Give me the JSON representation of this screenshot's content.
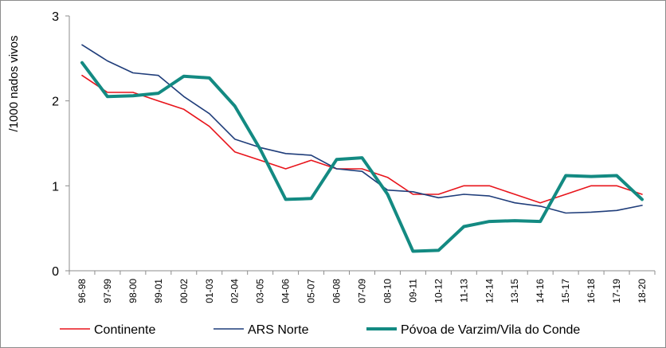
{
  "chart_data": {
    "type": "line",
    "ylabel": "/1000 nados vivos",
    "xlabel": "",
    "ylim": [
      0,
      3
    ],
    "yticks": [
      0,
      1,
      2,
      3
    ],
    "grid": false,
    "legend_position": "bottom",
    "categories": [
      "96-98",
      "97-99",
      "98-00",
      "99-01",
      "00-02",
      "01-03",
      "02-04",
      "03-05",
      "04-06",
      "05-07",
      "06-08",
      "07-09",
      "08-10",
      "09-11",
      "10-12",
      "11-13",
      "12-14",
      "13-15",
      "14-16",
      "15-17",
      "16-18",
      "17-19",
      "18-20"
    ],
    "series": [
      {
        "name": "Continente",
        "color": "#e8141b",
        "width": 1.6,
        "values": [
          2.3,
          2.1,
          2.1,
          2.0,
          1.9,
          1.7,
          1.4,
          1.3,
          1.2,
          1.3,
          1.2,
          1.2,
          1.1,
          0.9,
          0.9,
          1.0,
          1.0,
          0.9,
          0.8,
          0.9,
          1.0,
          1.0,
          0.9
        ]
      },
      {
        "name": "ARS Norte",
        "color": "#1f3d7a",
        "width": 1.6,
        "values": [
          2.66,
          2.47,
          2.33,
          2.3,
          2.05,
          1.85,
          1.55,
          1.45,
          1.38,
          1.36,
          1.2,
          1.17,
          0.95,
          0.93,
          0.86,
          0.9,
          0.88,
          0.8,
          0.76,
          0.68,
          0.69,
          0.71,
          0.77
        ]
      },
      {
        "name": "Póvoa de Varzim/Vila do Conde",
        "color": "#138a82",
        "width": 4,
        "values": [
          2.45,
          2.05,
          2.06,
          2.09,
          2.29,
          2.27,
          1.94,
          1.43,
          0.84,
          0.85,
          1.31,
          1.33,
          0.9,
          0.23,
          0.24,
          0.52,
          0.58,
          0.59,
          0.58,
          1.12,
          1.11,
          1.12,
          0.84
        ]
      }
    ]
  }
}
